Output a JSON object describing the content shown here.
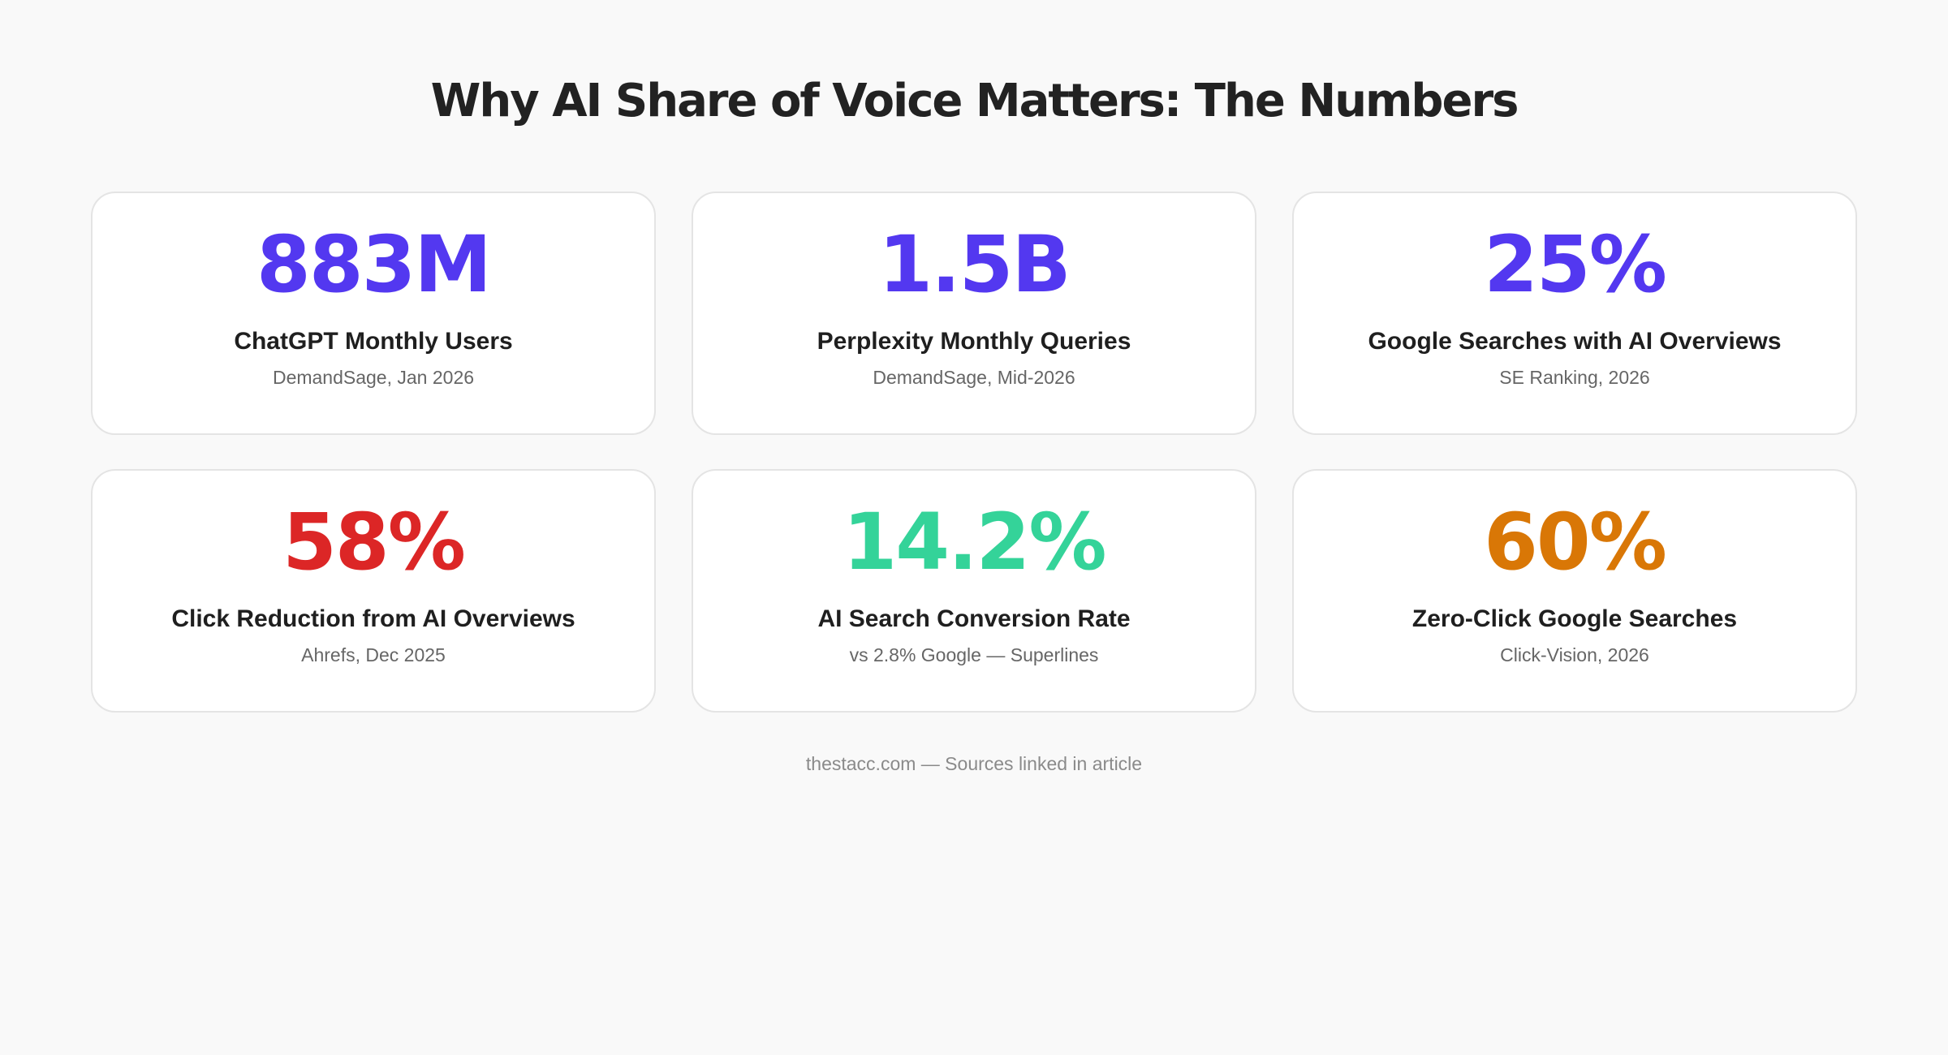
{
  "title": "Why AI Share of Voice Matters: The Numbers",
  "stats": [
    {
      "value": "883M",
      "label": "ChatGPT Monthly Users",
      "source": "DemandSage, Jan 2026",
      "color": "#5338f0"
    },
    {
      "value": "1.5B",
      "label": "Perplexity Monthly Queries",
      "source": "DemandSage, Mid-2026",
      "color": "#5338f0"
    },
    {
      "value": "25%",
      "label": "Google Searches with AI Overviews",
      "source": "SE Ranking, 2026",
      "color": "#5338f0"
    },
    {
      "value": "58%",
      "label": "Click Reduction from AI Overviews",
      "source": "Ahrefs, Dec 2025",
      "color": "#dc2626"
    },
    {
      "value": "14.2%",
      "label": "AI Search Conversion Rate",
      "source": "vs 2.8% Google — Superlines",
      "color": "#34d399"
    },
    {
      "value": "60%",
      "label": "Zero-Click Google Searches",
      "source": "Click-Vision, 2026",
      "color": "#d97706"
    }
  ],
  "footer": "thestacc.com — Sources linked in article"
}
